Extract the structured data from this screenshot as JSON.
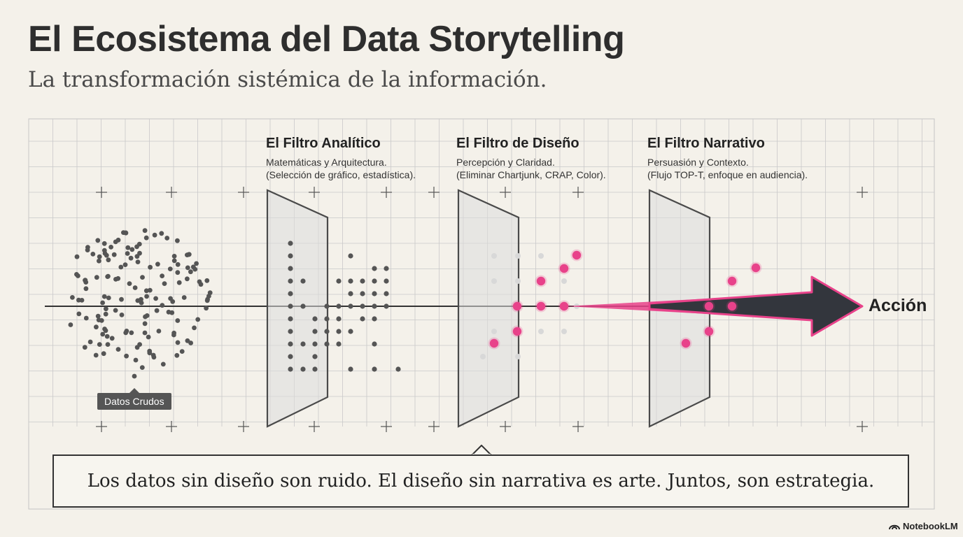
{
  "title": "El Ecosistema del Data Storytelling",
  "subtitle": "La transformación sistémica de la información.",
  "stages": {
    "raw": {
      "label": "Datos Crudos"
    },
    "filters": [
      {
        "title": "El Filtro Analítico",
        "line1": "Matemáticas y Arquitectura.",
        "line2": "(Selección de gráfico, estadística)."
      },
      {
        "title": "El Filtro de Diseño",
        "line1": "Percepción y Claridad.",
        "line2": "(Eliminar Chartjunk, CRAP, Color)."
      },
      {
        "title": "El Filtro Narrativo",
        "line1": "Persuasión y Contexto.",
        "line2": "(Flujo TOP-T, enfoque en audiencia)."
      }
    ],
    "result": "Acción"
  },
  "quote": "Los datos sin diseño son ruido. El diseño sin narrativa es arte. Juntos, son estrategia.",
  "brand": "NotebookLM",
  "colors": {
    "accent": "#e8428a",
    "arrow": "#33363d",
    "dot": "#555555",
    "grid": "#c9c9c9"
  }
}
